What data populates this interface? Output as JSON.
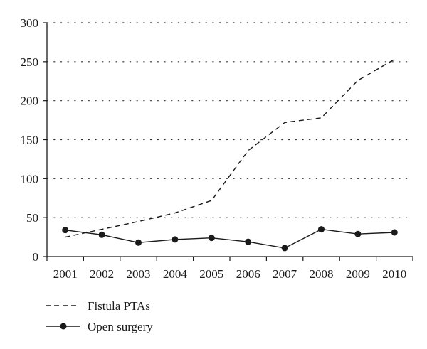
{
  "chart_data": {
    "type": "line",
    "categories": [
      "2001",
      "2002",
      "2003",
      "2004",
      "2005",
      "2006",
      "2007",
      "2008",
      "2009",
      "2010"
    ],
    "series": [
      {
        "name": "Fistula PTAs",
        "style": "dashed",
        "marker": "none",
        "color": "#1a1a1a",
        "values": [
          25,
          35,
          45,
          56,
          72,
          136,
          172,
          178,
          226,
          253
        ]
      },
      {
        "name": "Open surgery",
        "style": "solid",
        "marker": "circle",
        "color": "#1a1a1a",
        "values": [
          34,
          28,
          18,
          22,
          24,
          19,
          11,
          35,
          29,
          31
        ]
      }
    ],
    "ylim": [
      0,
      300
    ],
    "yticks": [
      0,
      50,
      100,
      150,
      200,
      250,
      300
    ],
    "ytick_labels": [
      "0",
      "50",
      "100",
      "150",
      "200",
      "250",
      "300"
    ],
    "title": "",
    "xlabel": "",
    "ylabel": "",
    "grid": "horizontal dotted",
    "legend_position": "bottom-left"
  }
}
